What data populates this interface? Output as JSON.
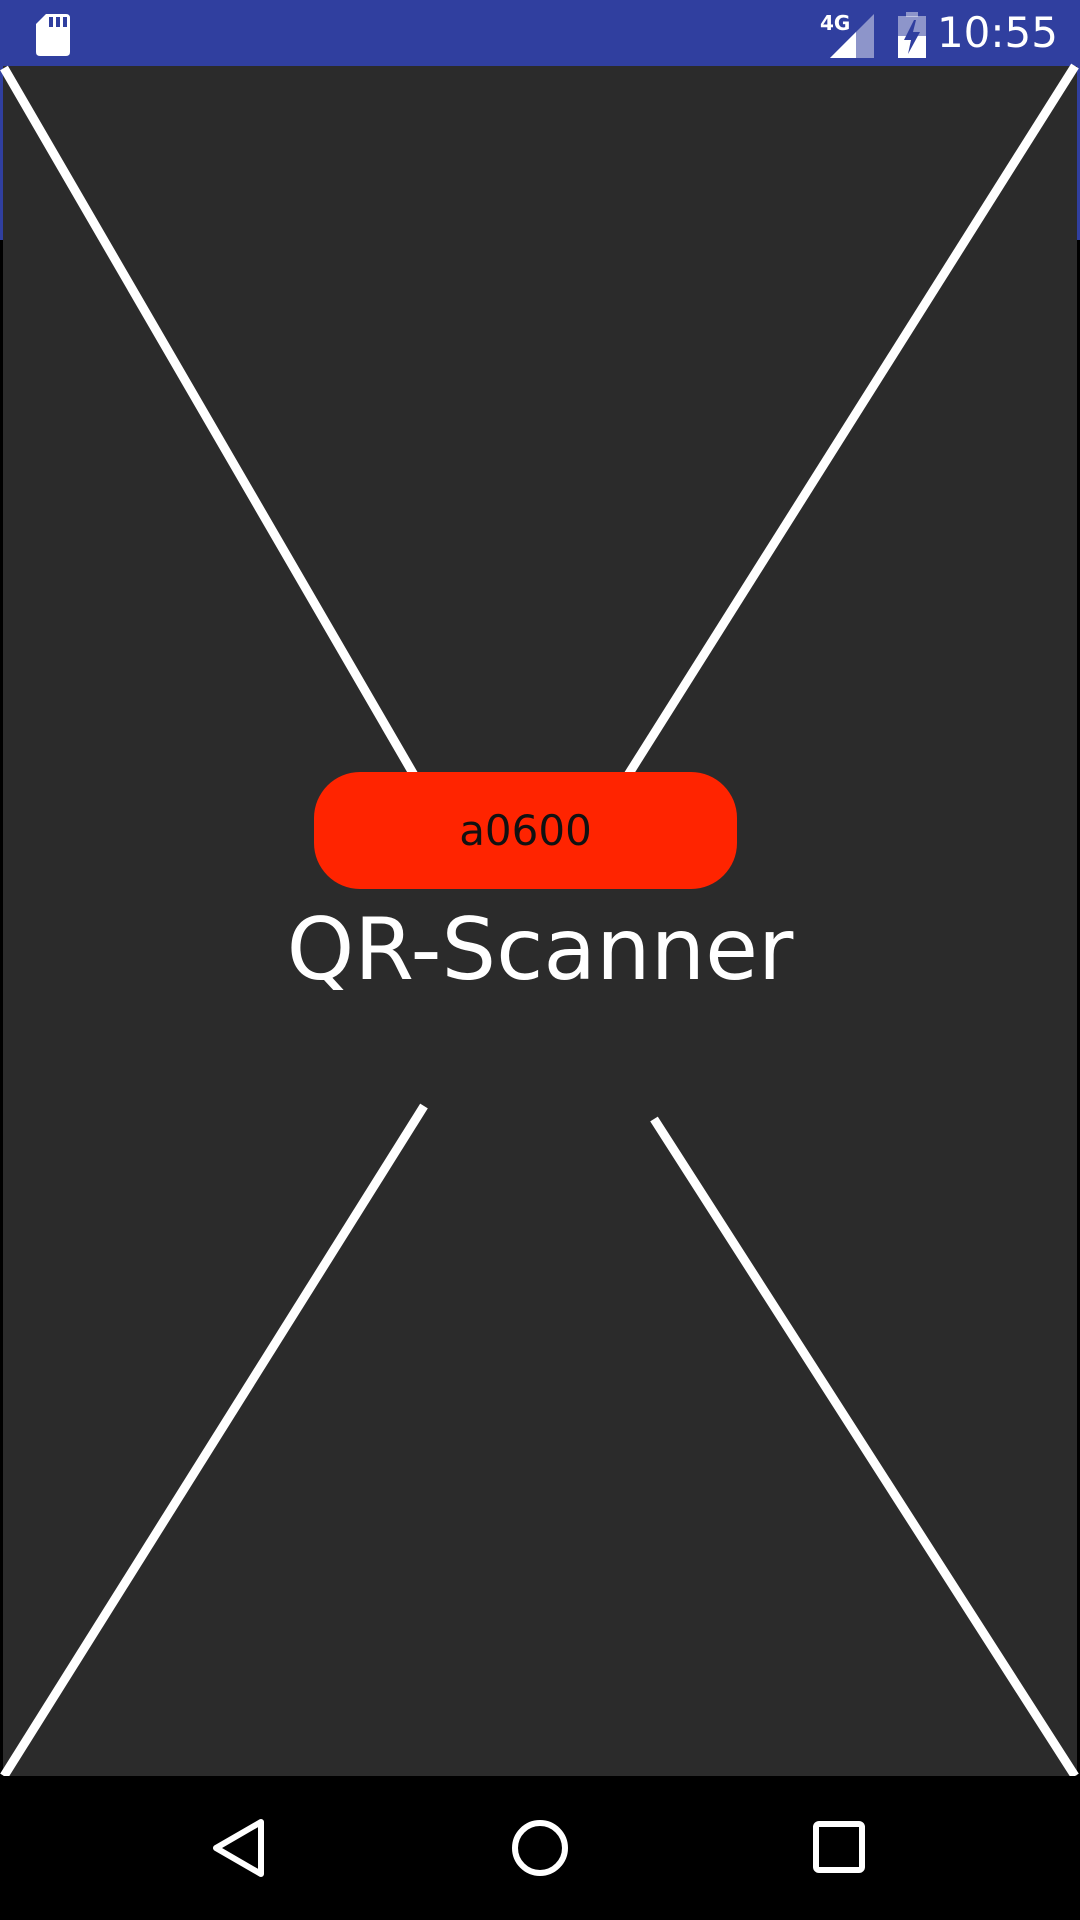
{
  "status_bar": {
    "time": "10:55",
    "network_label": "4G",
    "background_color": "#303f9f",
    "icons": [
      "sd-card-icon",
      "cellular-signal-icon",
      "battery-charging-icon"
    ]
  },
  "main": {
    "background_color": "#2b2b2b",
    "code_button": {
      "label": "a0600",
      "color": "#ff2400"
    },
    "title": "QR-Scanner",
    "scan_frame_icon": "scan-frame-lines"
  },
  "nav_bar": {
    "icons": [
      "back-icon",
      "home-icon",
      "recent-apps-icon"
    ]
  }
}
